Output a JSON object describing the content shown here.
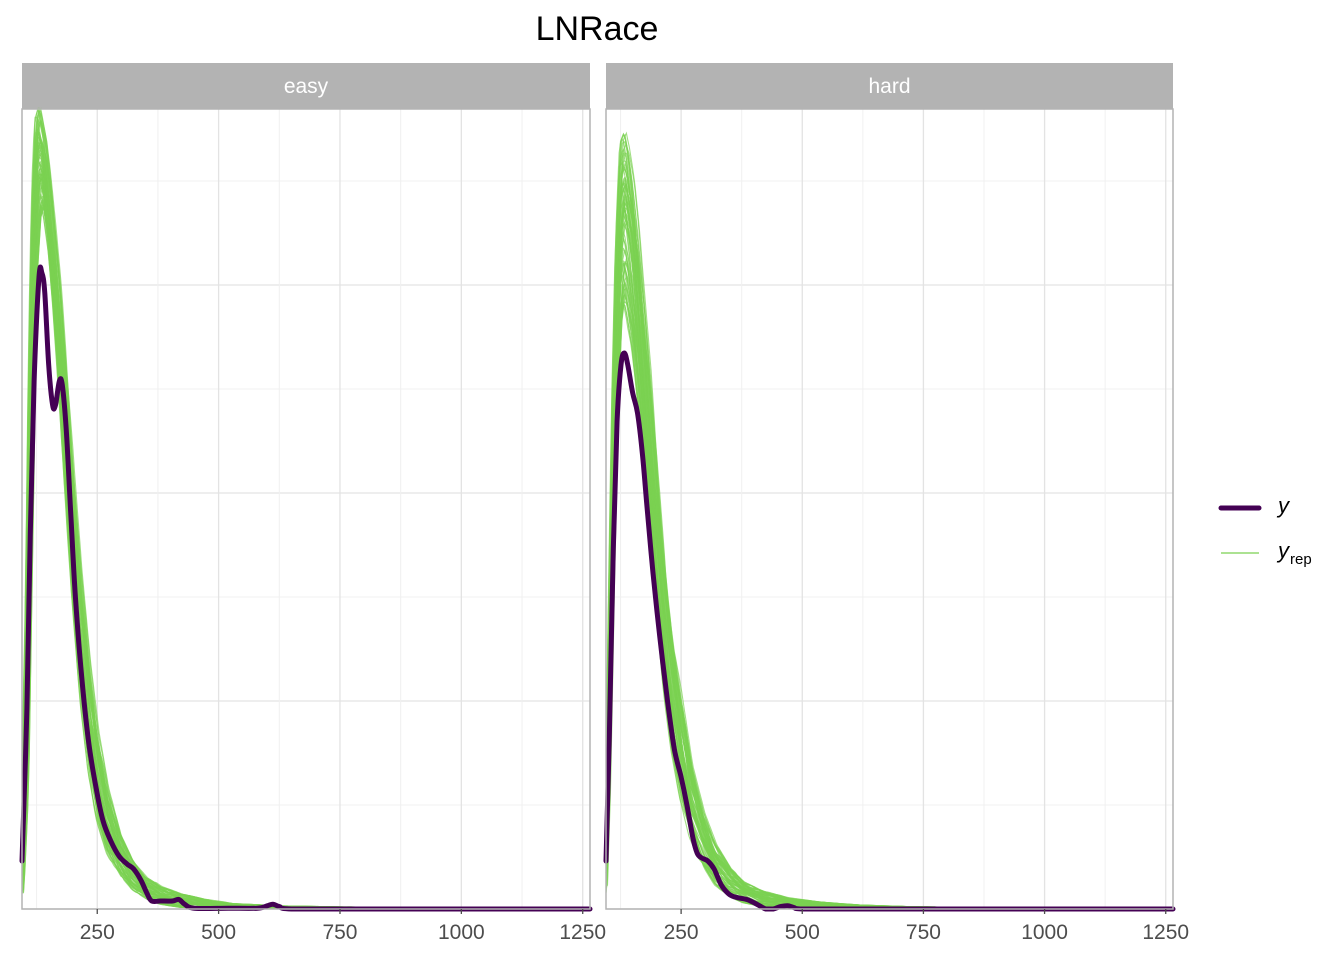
{
  "chart_data": {
    "type": "line",
    "title": "LNRace",
    "xlabel": "",
    "ylabel": "",
    "xlim": [
      95,
      1265
    ],
    "x_ticks": [
      "250",
      "500",
      "750",
      "1000",
      "1250"
    ],
    "x_tick_values": [
      250,
      500,
      750,
      1000,
      1250
    ],
    "grid": true,
    "legend_position": "right",
    "legend": [
      {
        "key": "y",
        "label": "y",
        "color": "#440154"
      },
      {
        "key": "yrep",
        "label": "y",
        "subscript": "rep",
        "color": "#7ad151"
      }
    ],
    "y_density_max": 1.0,
    "panels": [
      {
        "name": "easy",
        "y_points": [
          [
            95,
            0.06
          ],
          [
            105,
            0.25
          ],
          [
            112,
            0.47
          ],
          [
            120,
            0.66
          ],
          [
            130,
            0.79
          ],
          [
            136,
            0.795
          ],
          [
            142,
            0.77
          ],
          [
            150,
            0.68
          ],
          [
            158,
            0.63
          ],
          [
            164,
            0.63
          ],
          [
            172,
            0.66
          ],
          [
            178,
            0.655
          ],
          [
            186,
            0.6
          ],
          [
            195,
            0.5
          ],
          [
            205,
            0.39
          ],
          [
            218,
            0.29
          ],
          [
            232,
            0.21
          ],
          [
            248,
            0.15
          ],
          [
            262,
            0.11
          ],
          [
            278,
            0.085
          ],
          [
            295,
            0.066
          ],
          [
            312,
            0.056
          ],
          [
            325,
            0.05
          ],
          [
            340,
            0.036
          ],
          [
            352,
            0.02
          ],
          [
            362,
            0.01
          ],
          [
            380,
            0.01
          ],
          [
            405,
            0.01
          ],
          [
            418,
            0.012
          ],
          [
            430,
            0.006
          ],
          [
            450,
            0.001
          ],
          [
            520,
            0.001
          ],
          [
            580,
            0.001
          ],
          [
            600,
            0.004
          ],
          [
            612,
            0.006
          ],
          [
            625,
            0.003
          ],
          [
            650,
            0.0
          ],
          [
            800,
            0.0
          ],
          [
            1000,
            0.0
          ],
          [
            1265,
            0.0
          ]
        ],
        "yrep_envelope": {
          "x": [
            95,
            105,
            112,
            118,
            124,
            130,
            136,
            142,
            150,
            160,
            172,
            186,
            200,
            215,
            232,
            250,
            270,
            295,
            320,
            350,
            380,
            420,
            470,
            530,
            620,
            720,
            850,
            1000,
            1150,
            1265
          ],
          "lower": [
            0.02,
            0.15,
            0.4,
            0.62,
            0.8,
            0.86,
            0.88,
            0.86,
            0.82,
            0.74,
            0.63,
            0.5,
            0.37,
            0.26,
            0.17,
            0.11,
            0.07,
            0.042,
            0.024,
            0.012,
            0.006,
            0.002,
            0.001,
            0.0,
            0.0,
            0.0,
            0.0,
            0.0,
            0.0,
            0.0
          ],
          "upper": [
            0.1,
            0.38,
            0.72,
            0.9,
            0.99,
            1.0,
            0.98,
            0.96,
            0.92,
            0.86,
            0.78,
            0.66,
            0.54,
            0.42,
            0.31,
            0.22,
            0.15,
            0.095,
            0.062,
            0.04,
            0.028,
            0.019,
            0.012,
            0.007,
            0.004,
            0.003,
            0.002,
            0.002,
            0.001,
            0.001
          ]
        }
      },
      {
        "name": "hard",
        "y_points": [
          [
            95,
            0.06
          ],
          [
            102,
            0.22
          ],
          [
            110,
            0.45
          ],
          [
            118,
            0.61
          ],
          [
            126,
            0.68
          ],
          [
            133,
            0.695
          ],
          [
            140,
            0.68
          ],
          [
            150,
            0.645
          ],
          [
            160,
            0.62
          ],
          [
            170,
            0.57
          ],
          [
            180,
            0.5
          ],
          [
            192,
            0.42
          ],
          [
            206,
            0.34
          ],
          [
            222,
            0.26
          ],
          [
            236,
            0.2
          ],
          [
            250,
            0.165
          ],
          [
            262,
            0.13
          ],
          [
            274,
            0.09
          ],
          [
            283,
            0.07
          ],
          [
            292,
            0.064
          ],
          [
            305,
            0.06
          ],
          [
            318,
            0.05
          ],
          [
            333,
            0.03
          ],
          [
            350,
            0.018
          ],
          [
            368,
            0.014
          ],
          [
            385,
            0.012
          ],
          [
            400,
            0.008
          ],
          [
            412,
            0.004
          ],
          [
            425,
            0.0
          ],
          [
            440,
            0.0
          ],
          [
            455,
            0.003
          ],
          [
            470,
            0.004
          ],
          [
            482,
            0.002
          ],
          [
            500,
            0.0
          ],
          [
            600,
            0.0
          ],
          [
            800,
            0.0
          ],
          [
            1000,
            0.0
          ],
          [
            1265,
            0.0
          ]
        ],
        "yrep_envelope": {
          "x": [
            95,
            102,
            110,
            118,
            126,
            133,
            140,
            150,
            160,
            172,
            186,
            200,
            215,
            232,
            250,
            270,
            295,
            320,
            350,
            380,
            420,
            470,
            530,
            620,
            720,
            850,
            1000,
            1150,
            1265
          ],
          "lower": [
            0.02,
            0.15,
            0.4,
            0.6,
            0.72,
            0.76,
            0.74,
            0.7,
            0.64,
            0.56,
            0.46,
            0.37,
            0.28,
            0.2,
            0.14,
            0.09,
            0.055,
            0.03,
            0.016,
            0.008,
            0.003,
            0.001,
            0.0,
            0.0,
            0.0,
            0.0,
            0.0,
            0.0,
            0.0
          ],
          "upper": [
            0.1,
            0.34,
            0.64,
            0.85,
            0.96,
            0.97,
            0.95,
            0.91,
            0.85,
            0.76,
            0.66,
            0.55,
            0.44,
            0.34,
            0.26,
            0.18,
            0.12,
            0.08,
            0.05,
            0.034,
            0.022,
            0.014,
            0.009,
            0.005,
            0.003,
            0.002,
            0.002,
            0.001,
            0.001
          ]
        }
      }
    ]
  }
}
